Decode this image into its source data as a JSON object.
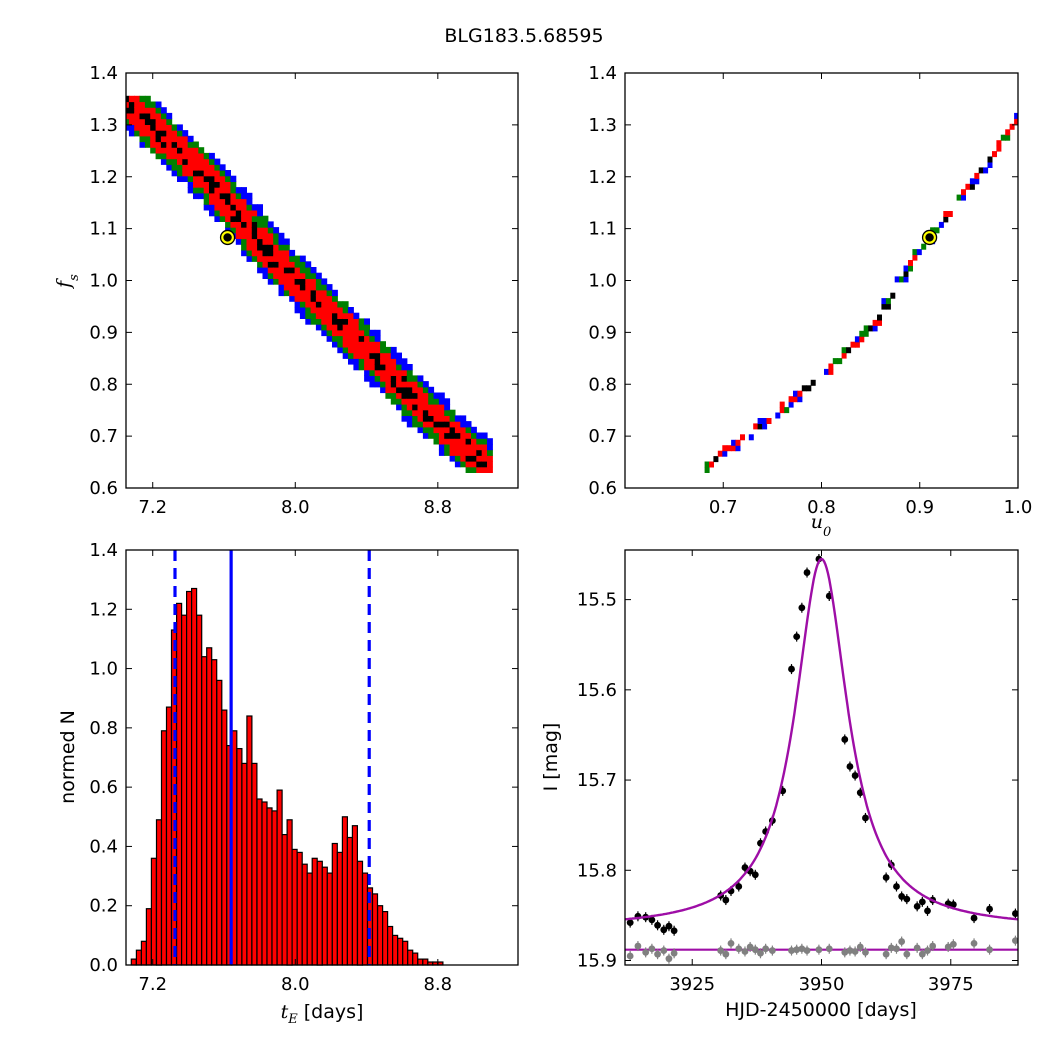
{
  "title": "BLG183.5.68595",
  "chart_data": [
    {
      "id": "fs_vs_tE",
      "type": "heatmap",
      "xlabel": "",
      "ylabel": "f_s",
      "ylabel_parts": {
        "base": "f",
        "sub": "s"
      },
      "xlim": [
        7.05,
        9.25
      ],
      "ylim": [
        0.6,
        1.4
      ],
      "xticks": [
        7.2,
        8.0,
        8.8
      ],
      "xtick_labels": [
        "7.2",
        "8.0",
        "8.8"
      ],
      "yticks": [
        0.6,
        0.7,
        0.8,
        0.9,
        1.0,
        1.1,
        1.2,
        1.3,
        1.4
      ],
      "ytick_labels": [
        "0.6",
        "0.7",
        "0.8",
        "0.9",
        "1.0",
        "1.1",
        "1.2",
        "1.3",
        "1.4"
      ],
      "levels": [
        {
          "name": "black",
          "color": "#000000"
        },
        {
          "name": "red",
          "color": "#ff0000"
        },
        {
          "name": "green",
          "color": "#008000"
        },
        {
          "name": "blue",
          "color": "#0000ff"
        }
      ],
      "ridge": [
        [
          7.05,
          1.335
        ],
        [
          7.5,
          1.19
        ],
        [
          7.9,
          1.025
        ],
        [
          8.3,
          0.89
        ],
        [
          8.7,
          0.75
        ],
        [
          9.05,
          0.64
        ]
      ],
      "ridge_halfwidths": {
        "core": 0.06,
        "red": 0.13,
        "green": 0.18,
        "blue": 0.22
      },
      "cell": {
        "dx": 0.03,
        "dy": 0.011
      },
      "best_fit": {
        "x": 7.62,
        "y": 1.083
      }
    },
    {
      "id": "fs_vs_u0",
      "type": "heatmap",
      "xlabel": "u_0",
      "xlabel_parts": {
        "base": "u",
        "sub": "0"
      },
      "ylabel": "",
      "xlim": [
        0.6,
        1.0
      ],
      "ylim": [
        0.6,
        1.4
      ],
      "xticks": [
        0.7,
        0.8,
        0.9,
        1.0
      ],
      "xtick_labels": [
        "0.7",
        "0.8",
        "0.9",
        "1.0"
      ],
      "yticks": [
        0.6,
        0.7,
        0.8,
        0.9,
        1.0,
        1.1,
        1.2,
        1.3,
        1.4
      ],
      "ytick_labels": [
        "0.6",
        "0.7",
        "0.8",
        "0.9",
        "1.0",
        "1.1",
        "1.2",
        "1.3",
        "1.4"
      ],
      "ridge": [
        [
          0.68,
          0.638
        ],
        [
          0.75,
          0.735
        ],
        [
          0.8,
          0.815
        ],
        [
          0.85,
          0.905
        ],
        [
          0.9,
          1.06
        ],
        [
          0.95,
          1.18
        ],
        [
          1.0,
          1.315
        ]
      ],
      "ridge_halfwidths": {
        "core": 0.004,
        "red": 0.01,
        "green": 0.015,
        "blue": 0.02
      },
      "cell": {
        "dx": 0.0045,
        "dy": 0.0105
      },
      "best_fit": {
        "x": 0.91,
        "y": 1.083
      }
    },
    {
      "id": "tE_histogram",
      "type": "bar",
      "xlabel": "t_E [days]",
      "xlabel_parts": {
        "base": "t",
        "sub": "E",
        "suffix": " [days]"
      },
      "ylabel": "normed N",
      "xlim": [
        7.05,
        9.25
      ],
      "ylim": [
        0.0,
        1.4
      ],
      "xticks": [
        7.2,
        8.0,
        8.8
      ],
      "xtick_labels": [
        "7.2",
        "8.0",
        "8.8"
      ],
      "yticks": [
        0.0,
        0.2,
        0.4,
        0.6,
        0.8,
        1.0,
        1.2,
        1.4
      ],
      "ytick_labels": [
        "0.0",
        "0.2",
        "0.4",
        "0.6",
        "0.8",
        "1.0",
        "1.2",
        "1.4"
      ],
      "bin_start": 7.08,
      "bin_width": 0.0282,
      "bar_color": "#ff0000",
      "values": [
        0.02,
        0.05,
        0.08,
        0.19,
        0.36,
        0.49,
        0.79,
        0.87,
        1.13,
        1.22,
        1.18,
        1.26,
        1.27,
        1.18,
        1.04,
        1.07,
        1.03,
        0.96,
        0.86,
        0.74,
        0.79,
        0.73,
        0.68,
        0.84,
        0.68,
        0.56,
        0.55,
        0.53,
        0.52,
        0.59,
        0.44,
        0.49,
        0.39,
        0.38,
        0.34,
        0.31,
        0.36,
        0.35,
        0.33,
        0.31,
        0.41,
        0.38,
        0.5,
        0.43,
        0.47,
        0.35,
        0.31,
        0.26,
        0.24,
        0.2,
        0.18,
        0.13,
        0.1,
        0.09,
        0.08,
        0.05,
        0.04,
        0.02,
        0.02,
        0.01,
        0.01,
        0.01
      ],
      "vlines": [
        {
          "x": 7.325,
          "style": "dashed",
          "color": "#0000ff"
        },
        {
          "x": 7.64,
          "style": "solid",
          "color": "#0000ff"
        },
        {
          "x": 8.415,
          "style": "dashed",
          "color": "#0000ff"
        }
      ]
    },
    {
      "id": "light_curve",
      "type": "scatter",
      "xlabel": "HJD-2450000 [days]",
      "ylabel": "I [mag]",
      "xlim": [
        3912,
        3988
      ],
      "ylim": [
        15.905,
        15.445
      ],
      "y_inverted": true,
      "xticks": [
        3925,
        3950,
        3975
      ],
      "xtick_labels": [
        "3925",
        "3950",
        "3975"
      ],
      "yticks": [
        15.5,
        15.6,
        15.7,
        15.8,
        15.9
      ],
      "ytick_labels": [
        "15.5",
        "15.6",
        "15.7",
        "15.8",
        "15.9"
      ],
      "model_color": "#9e0ea6",
      "model": {
        "t0": 3950.0,
        "peak_mag": 15.455,
        "baseline_mag": 15.865,
        "width": 6.2
      },
      "residual_baseline": 15.888,
      "series": [
        {
          "color": "#000000",
          "x": [
            3913,
            3914.5,
            3916,
            3917.2,
            3918.3,
            3919.5,
            3920.5,
            3921.5,
            3930.5,
            3931.5,
            3932.5,
            3934,
            3935.2,
            3936.2,
            3937.2,
            3938.2,
            3939.2,
            3940.5,
            3942.5,
            3944.2,
            3945.2,
            3946.2,
            3947.2,
            3949.5,
            3951.5,
            3954.5,
            3955.5,
            3956.5,
            3957.5,
            3958.5,
            3962.5,
            3963.5,
            3964.5,
            3965.5,
            3966.5,
            3968.5,
            3969.5,
            3970.5,
            3971.5,
            3974.5,
            3975.5,
            3979.5,
            3982.5,
            3987.5
          ],
          "y": [
            15.858,
            15.851,
            15.852,
            15.855,
            15.861,
            15.866,
            15.862,
            15.867,
            15.828,
            15.833,
            15.823,
            15.818,
            15.797,
            15.801,
            15.805,
            15.77,
            15.757,
            15.745,
            15.712,
            15.577,
            15.541,
            15.509,
            15.47,
            15.455,
            15.496,
            15.655,
            15.685,
            15.695,
            15.714,
            15.742,
            15.808,
            15.794,
            15.818,
            15.829,
            15.832,
            15.84,
            15.835,
            15.845,
            15.833,
            15.837,
            15.838,
            15.853,
            15.843,
            15.848
          ]
        },
        {
          "color": "#808080",
          "x": [
            3913,
            3914.5,
            3916,
            3917.2,
            3918.3,
            3919.5,
            3920.5,
            3921.5,
            3930.5,
            3931.5,
            3932.5,
            3934,
            3935.2,
            3936.2,
            3937.2,
            3938.2,
            3939.2,
            3940.5,
            3944.2,
            3945.2,
            3946.2,
            3947.2,
            3949.5,
            3951.5,
            3954.5,
            3955.5,
            3956.5,
            3957.5,
            3958.5,
            3962.5,
            3963.5,
            3964.5,
            3965.5,
            3966.5,
            3968.5,
            3969.5,
            3970.5,
            3971.5,
            3974.5,
            3975.5,
            3979.5,
            3982.5,
            3987.5
          ],
          "y": [
            15.895,
            15.884,
            15.891,
            15.887,
            15.893,
            15.889,
            15.898,
            15.892,
            15.889,
            15.893,
            15.881,
            15.887,
            15.89,
            15.885,
            15.888,
            15.892,
            15.887,
            15.889,
            15.889,
            15.888,
            15.887,
            15.889,
            15.888,
            15.887,
            15.891,
            15.889,
            15.89,
            15.885,
            15.891,
            15.893,
            15.886,
            15.887,
            15.879,
            15.893,
            15.886,
            15.893,
            15.889,
            15.884,
            15.885,
            15.882,
            15.881,
            15.888,
            15.878
          ]
        }
      ]
    }
  ]
}
